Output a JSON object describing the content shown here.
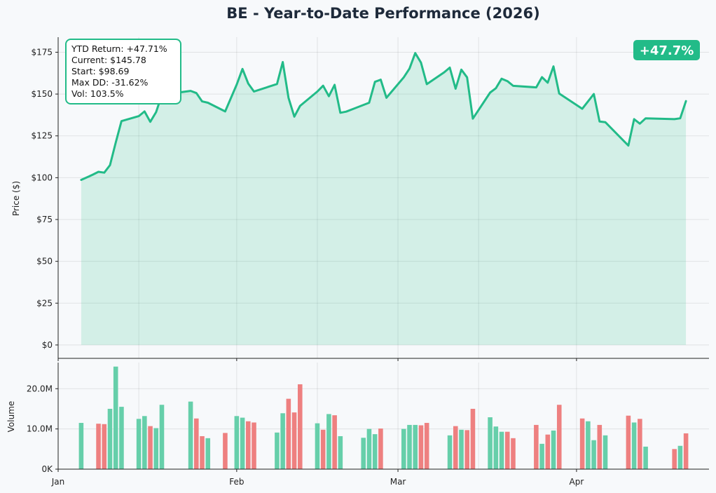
{
  "chart_data": {
    "type": "line",
    "title": "BE - Year-to-Date Performance (2026)",
    "colors": {
      "line": "#22bb88",
      "fill": "#22bb88",
      "up": "#66cfaa",
      "down": "#ee8080",
      "badge": "#22bb88"
    },
    "badge": "+47.7%",
    "stats": [
      "YTD Return: +47.71%",
      "Current: $145.78",
      "Start: $98.69",
      "Max DD: -31.62%",
      "Vol: 103.5%"
    ],
    "price": {
      "ylabel": "Price ($)",
      "ylim": [
        -8,
        184
      ],
      "yticks": [
        0,
        25,
        50,
        75,
        100,
        125,
        150,
        175
      ],
      "ytick_labels": [
        "$0",
        "$25",
        "$50",
        "$75",
        "$100",
        "$125",
        "$150",
        "$175"
      ],
      "grid": true,
      "points": [
        [
          "2026-01-05",
          98.69
        ],
        [
          "2026-01-06",
          100.2
        ],
        [
          "2026-01-07",
          101.8
        ],
        [
          "2026-01-08",
          103.5
        ],
        [
          "2026-01-09",
          103.0
        ],
        [
          "2026-01-10",
          107.5
        ],
        [
          "2026-01-11",
          121.0
        ],
        [
          "2026-01-12",
          133.8
        ],
        [
          "2026-01-15",
          136.8
        ],
        [
          "2026-01-16",
          139.6
        ],
        [
          "2026-01-17",
          133.4
        ],
        [
          "2026-01-18",
          139.2
        ],
        [
          "2026-01-19",
          149.5
        ],
        [
          "2026-01-20",
          150.0
        ],
        [
          "2026-01-24",
          151.9
        ],
        [
          "2026-01-25",
          150.6
        ],
        [
          "2026-01-26",
          145.6
        ],
        [
          "2026-01-27",
          144.8
        ],
        [
          "2026-01-30",
          139.6
        ],
        [
          "2026-02-01",
          155.7
        ],
        [
          "2026-02-02",
          165.0
        ],
        [
          "2026-02-03",
          156.3
        ],
        [
          "2026-02-04",
          151.5
        ],
        [
          "2026-02-08",
          156.0
        ],
        [
          "2026-02-09",
          169.1
        ],
        [
          "2026-02-10",
          147.8
        ],
        [
          "2026-02-11",
          136.5
        ],
        [
          "2026-02-12",
          142.9
        ],
        [
          "2026-02-15",
          151.5
        ],
        [
          "2026-02-16",
          155.0
        ],
        [
          "2026-02-17",
          148.7
        ],
        [
          "2026-02-18",
          155.5
        ],
        [
          "2026-02-19",
          138.8
        ],
        [
          "2026-02-20",
          139.5
        ],
        [
          "2026-02-24",
          144.8
        ],
        [
          "2026-02-25",
          157.3
        ],
        [
          "2026-02-26",
          158.6
        ],
        [
          "2026-02-27",
          147.8
        ],
        [
          "2026-03-02",
          160.0
        ],
        [
          "2026-03-03",
          165.2
        ],
        [
          "2026-03-04",
          174.5
        ],
        [
          "2026-03-05",
          168.8
        ],
        [
          "2026-03-06",
          155.9
        ],
        [
          "2026-03-09",
          162.9
        ],
        [
          "2026-03-10",
          165.8
        ],
        [
          "2026-03-11",
          153.2
        ],
        [
          "2026-03-12",
          164.6
        ],
        [
          "2026-03-13",
          160.0
        ],
        [
          "2026-03-14",
          135.3
        ],
        [
          "2026-03-17",
          150.9
        ],
        [
          "2026-03-18",
          153.5
        ],
        [
          "2026-03-19",
          159.2
        ],
        [
          "2026-03-20",
          157.7
        ],
        [
          "2026-03-21",
          154.9
        ],
        [
          "2026-03-25",
          154.0
        ],
        [
          "2026-03-26",
          160.1
        ],
        [
          "2026-03-27",
          156.8
        ],
        [
          "2026-03-28",
          166.5
        ],
        [
          "2026-03-29",
          150.3
        ],
        [
          "2026-04-02",
          141.2
        ],
        [
          "2026-04-04",
          150.0
        ],
        [
          "2026-04-05",
          133.6
        ],
        [
          "2026-04-06",
          133.2
        ],
        [
          "2026-04-10",
          119.2
        ],
        [
          "2026-04-11",
          135.0
        ],
        [
          "2026-04-12",
          132.3
        ],
        [
          "2026-04-13",
          135.5
        ],
        [
          "2026-04-18",
          135.0
        ],
        [
          "2026-04-19",
          135.5
        ],
        [
          "2026-04-20",
          145.78
        ]
      ]
    },
    "volume": {
      "ylabel": "Volume",
      "ylim": [
        0,
        26.5
      ],
      "yticks": [
        0,
        10,
        20
      ],
      "ytick_labels": [
        "0K",
        "10.0M",
        "20.0M"
      ],
      "grid": true,
      "bars": [
        [
          "2026-01-05",
          11.5,
          "up"
        ],
        [
          "2026-01-08",
          11.3,
          "down"
        ],
        [
          "2026-01-09",
          11.2,
          "down"
        ],
        [
          "2026-01-10",
          15.0,
          "up"
        ],
        [
          "2026-01-11",
          25.5,
          "up"
        ],
        [
          "2026-01-12",
          15.5,
          "up"
        ],
        [
          "2026-01-15",
          12.5,
          "up"
        ],
        [
          "2026-01-16",
          13.2,
          "up"
        ],
        [
          "2026-01-17",
          10.7,
          "down"
        ],
        [
          "2026-01-18",
          10.2,
          "up"
        ],
        [
          "2026-01-19",
          16.0,
          "up"
        ],
        [
          "2026-01-24",
          16.8,
          "up"
        ],
        [
          "2026-01-25",
          12.6,
          "down"
        ],
        [
          "2026-01-26",
          8.2,
          "down"
        ],
        [
          "2026-01-27",
          7.7,
          "up"
        ],
        [
          "2026-01-30",
          9.0,
          "down"
        ],
        [
          "2026-02-01",
          13.2,
          "up"
        ],
        [
          "2026-02-02",
          12.8,
          "up"
        ],
        [
          "2026-02-03",
          11.9,
          "down"
        ],
        [
          "2026-02-04",
          11.6,
          "down"
        ],
        [
          "2026-02-08",
          9.1,
          "up"
        ],
        [
          "2026-02-09",
          13.9,
          "up"
        ],
        [
          "2026-02-10",
          17.5,
          "down"
        ],
        [
          "2026-02-11",
          14.1,
          "down"
        ],
        [
          "2026-02-12",
          21.1,
          "down"
        ],
        [
          "2026-02-15",
          11.4,
          "up"
        ],
        [
          "2026-02-16",
          9.8,
          "down"
        ],
        [
          "2026-02-17",
          13.7,
          "up"
        ],
        [
          "2026-02-18",
          13.4,
          "down"
        ],
        [
          "2026-02-19",
          8.2,
          "up"
        ],
        [
          "2026-02-23",
          7.8,
          "up"
        ],
        [
          "2026-02-24",
          10.0,
          "up"
        ],
        [
          "2026-02-25",
          8.7,
          "up"
        ],
        [
          "2026-02-26",
          10.1,
          "down"
        ],
        [
          "2026-03-02",
          10.0,
          "up"
        ],
        [
          "2026-03-03",
          11.0,
          "up"
        ],
        [
          "2026-03-04",
          11.0,
          "up"
        ],
        [
          "2026-03-05",
          10.9,
          "down"
        ],
        [
          "2026-03-06",
          11.5,
          "down"
        ],
        [
          "2026-03-10",
          8.4,
          "up"
        ],
        [
          "2026-03-11",
          10.7,
          "down"
        ],
        [
          "2026-03-12",
          9.8,
          "up"
        ],
        [
          "2026-03-13",
          9.7,
          "down"
        ],
        [
          "2026-03-14",
          15.0,
          "down"
        ],
        [
          "2026-03-17",
          12.9,
          "up"
        ],
        [
          "2026-03-18",
          10.6,
          "up"
        ],
        [
          "2026-03-19",
          9.3,
          "up"
        ],
        [
          "2026-03-20",
          9.3,
          "down"
        ],
        [
          "2026-03-21",
          7.7,
          "down"
        ],
        [
          "2026-03-25",
          11.0,
          "down"
        ],
        [
          "2026-03-26",
          6.3,
          "up"
        ],
        [
          "2026-03-27",
          8.6,
          "down"
        ],
        [
          "2026-03-28",
          9.6,
          "up"
        ],
        [
          "2026-03-29",
          16.0,
          "down"
        ],
        [
          "2026-04-02",
          12.6,
          "down"
        ],
        [
          "2026-04-03",
          11.9,
          "up"
        ],
        [
          "2026-04-04",
          7.2,
          "up"
        ],
        [
          "2026-04-05",
          11.0,
          "down"
        ],
        [
          "2026-04-06",
          8.4,
          "up"
        ],
        [
          "2026-04-10",
          13.3,
          "down"
        ],
        [
          "2026-04-11",
          11.6,
          "up"
        ],
        [
          "2026-04-12",
          12.5,
          "down"
        ],
        [
          "2026-04-13",
          5.6,
          "up"
        ],
        [
          "2026-04-18",
          5.0,
          "down"
        ],
        [
          "2026-04-19",
          5.8,
          "up"
        ],
        [
          "2026-04-20",
          8.9,
          "down"
        ]
      ]
    },
    "x": {
      "type": "date",
      "range": [
        "2026-01-01",
        "2026-04-24"
      ],
      "ticks": [
        "2026-01-01",
        "2026-02-01",
        "2026-03-01",
        "2026-04-01"
      ],
      "tick_labels": [
        "Jan",
        "Feb",
        "Mar",
        "Apr"
      ],
      "minor_grid": [
        "2026-01-15",
        "2026-02-15",
        "2026-03-15"
      ]
    }
  }
}
